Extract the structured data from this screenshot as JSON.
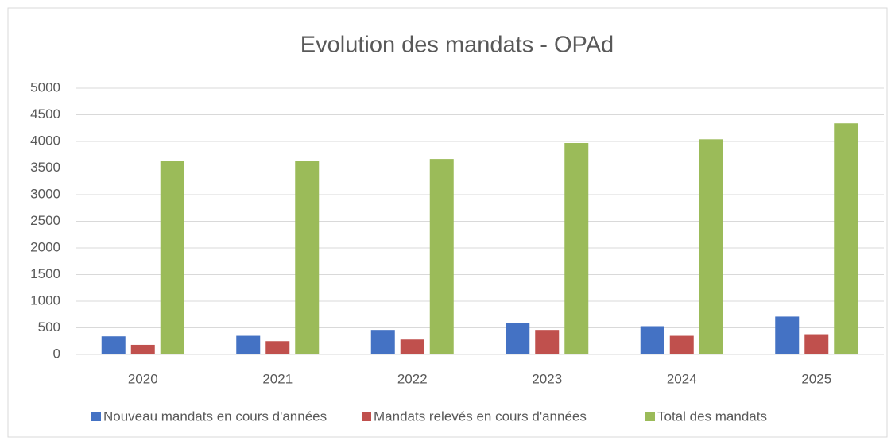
{
  "chart_data": {
    "type": "bar",
    "title": "Evolution des mandats - OPAd",
    "categories": [
      "2020",
      "2021",
      "2022",
      "2023",
      "2024",
      "2025"
    ],
    "series": [
      {
        "name": "Nouveau mandats en cours d'années",
        "color": "#4472c4",
        "values": [
          340,
          350,
          460,
          590,
          530,
          710
        ]
      },
      {
        "name": "Mandats relevés en cours d'années",
        "color": "#c0504d",
        "values": [
          180,
          250,
          280,
          460,
          350,
          380
        ]
      },
      {
        "name": "Total des mandats",
        "color": "#9bbb59",
        "values": [
          3630,
          3640,
          3670,
          3970,
          4040,
          4340
        ]
      }
    ],
    "ylim": [
      0,
      5000
    ],
    "yticks": [
      0,
      500,
      1000,
      1500,
      2000,
      2500,
      3000,
      3500,
      4000,
      4500,
      5000
    ],
    "grid": true,
    "legend": "bottom"
  }
}
